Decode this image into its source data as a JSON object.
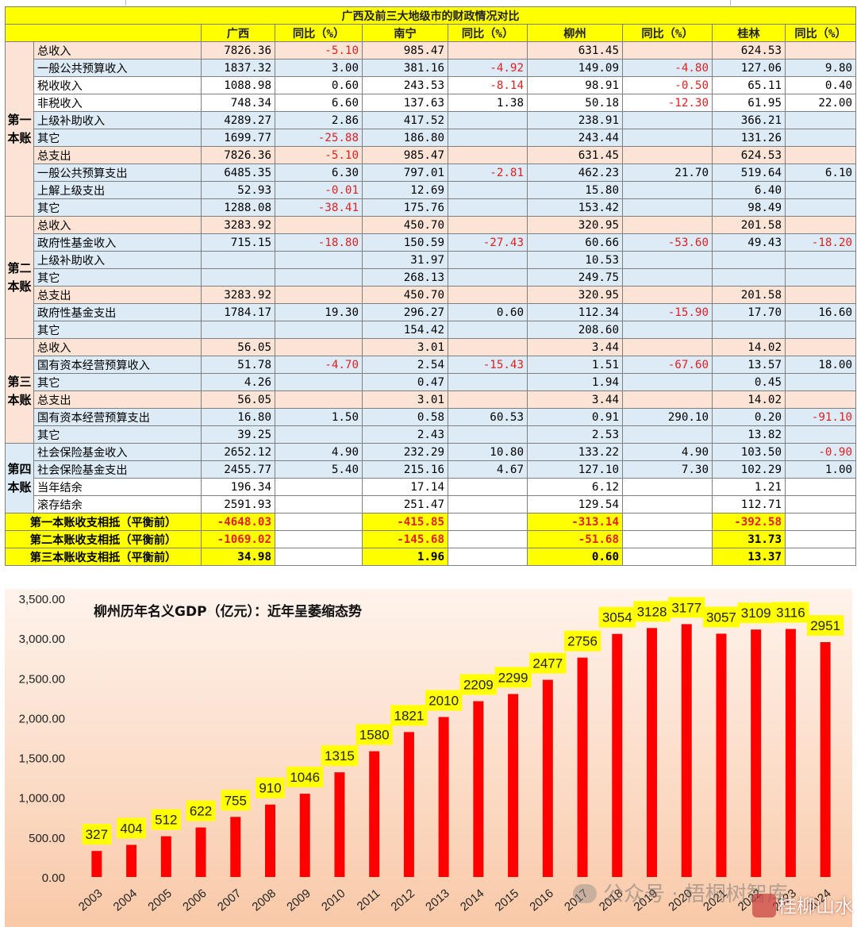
{
  "table": {
    "title": "广西及前三大地级市的财政情况对比",
    "headers": [
      "广西",
      "同比（%）",
      "南宁",
      "同比（%）",
      "柳州",
      "同比（%）",
      "桂林",
      "同比（%）"
    ],
    "sections": [
      {
        "name": "第一本账",
        "rows": [
          {
            "label": "总收入",
            "style": "pk",
            "vals": [
              "7826.36",
              "-5.10",
              "985.47",
              "",
              "631.45",
              "",
              "624.53",
              ""
            ]
          },
          {
            "label": "一般公共预算收入",
            "style": "bl",
            "vals": [
              "1837.32",
              "3.00",
              "381.16",
              "-4.92",
              "149.09",
              "-4.80",
              "127.06",
              "9.80"
            ]
          },
          {
            "label": "税收收入",
            "style": "wh",
            "vals": [
              "1088.98",
              "0.60",
              "243.53",
              "-8.14",
              "98.91",
              "-0.50",
              "65.11",
              "0.40"
            ]
          },
          {
            "label": "非税收入",
            "style": "wh",
            "vals": [
              "748.34",
              "6.60",
              "137.63",
              "1.38",
              "50.18",
              "-12.30",
              "61.95",
              "22.00"
            ]
          },
          {
            "label": "上级补助收入",
            "style": "bl",
            "vals": [
              "4289.27",
              "2.86",
              "417.52",
              "",
              "238.91",
              "",
              "366.21",
              ""
            ]
          },
          {
            "label": "其它",
            "style": "bl",
            "vals": [
              "1699.77",
              "-25.88",
              "186.80",
              "",
              "243.44",
              "",
              "131.26",
              ""
            ]
          },
          {
            "label": "总支出",
            "style": "pk",
            "vals": [
              "7826.36",
              "-5.10",
              "985.47",
              "",
              "631.45",
              "",
              "624.53",
              ""
            ]
          },
          {
            "label": "一般公共预算支出",
            "style": "bl",
            "vals": [
              "6485.35",
              "6.30",
              "797.01",
              "-2.81",
              "462.23",
              "21.70",
              "519.64",
              "6.10"
            ]
          },
          {
            "label": "上解上级支出",
            "style": "bl",
            "vals": [
              "52.93",
              "-0.01",
              "12.69",
              "",
              "15.80",
              "",
              "6.40",
              ""
            ]
          },
          {
            "label": "其它",
            "style": "bl",
            "vals": [
              "1288.08",
              "-38.41",
              "175.76",
              "",
              "153.42",
              "",
              "98.49",
              ""
            ]
          }
        ]
      },
      {
        "name": "第二本账",
        "rows": [
          {
            "label": "总收入",
            "style": "pk",
            "vals": [
              "3283.92",
              "",
              "450.70",
              "",
              "320.95",
              "",
              "201.58",
              ""
            ]
          },
          {
            "label": "政府性基金收入",
            "style": "bl",
            "vals": [
              "715.15",
              "-18.80",
              "150.59",
              "-27.43",
              "60.66",
              "-53.60",
              "49.43",
              "-18.20"
            ]
          },
          {
            "label": "上级补助收入",
            "style": "bl",
            "vals": [
              "",
              "",
              "31.97",
              "",
              "10.53",
              "",
              "",
              ""
            ]
          },
          {
            "label": "其它",
            "style": "bl",
            "vals": [
              "",
              "",
              "268.13",
              "",
              "249.75",
              "",
              "",
              ""
            ]
          },
          {
            "label": "总支出",
            "style": "pk",
            "vals": [
              "3283.92",
              "",
              "450.70",
              "",
              "320.95",
              "",
              "201.58",
              ""
            ]
          },
          {
            "label": "政府性基金支出",
            "style": "bl",
            "vals": [
              "1784.17",
              "19.30",
              "296.27",
              "0.60",
              "112.34",
              "-15.90",
              "17.70",
              "16.60"
            ]
          },
          {
            "label": "其它",
            "style": "bl",
            "vals": [
              "",
              "",
              "154.42",
              "",
              "208.60",
              "",
              "",
              ""
            ]
          }
        ]
      },
      {
        "name": "第三本账",
        "rows": [
          {
            "label": "总收入",
            "style": "pk",
            "vals": [
              "56.05",
              "",
              "3.01",
              "",
              "3.44",
              "",
              "14.02",
              ""
            ]
          },
          {
            "label": "国有资本经营预算收入",
            "style": "bl",
            "vals": [
              "51.78",
              "-4.70",
              "2.54",
              "-15.43",
              "1.51",
              "-67.60",
              "13.57",
              "18.00"
            ]
          },
          {
            "label": "其它",
            "style": "bl",
            "vals": [
              "4.26",
              "",
              "0.47",
              "",
              "1.94",
              "",
              "0.45",
              ""
            ]
          },
          {
            "label": "总支出",
            "style": "pk",
            "vals": [
              "56.05",
              "",
              "3.01",
              "",
              "3.44",
              "",
              "14.02",
              ""
            ]
          },
          {
            "label": "国有资本经营预算支出",
            "style": "bl",
            "vals": [
              "16.80",
              "1.50",
              "0.58",
              "60.53",
              "0.91",
              "290.10",
              "0.20",
              "-91.10"
            ]
          },
          {
            "label": "其它",
            "style": "bl",
            "vals": [
              "39.25",
              "",
              "2.43",
              "",
              "2.53",
              "",
              "13.82",
              ""
            ]
          }
        ]
      },
      {
        "name": "第四本账",
        "rows": [
          {
            "label": "社会保险基金收入",
            "style": "bl",
            "vals": [
              "2652.12",
              "4.90",
              "232.29",
              "10.80",
              "133.22",
              "4.90",
              "103.50",
              "-0.90"
            ]
          },
          {
            "label": "社会保险基金支出",
            "style": "bl",
            "vals": [
              "2455.77",
              "5.40",
              "215.16",
              "4.67",
              "127.10",
              "7.30",
              "102.29",
              "1.00"
            ]
          },
          {
            "label": "当年结余",
            "style": "wh",
            "vals": [
              "196.34",
              "",
              "17.14",
              "",
              "6.12",
              "",
              "1.21",
              ""
            ]
          },
          {
            "label": "滚存结余",
            "style": "wh",
            "vals": [
              "2591.93",
              "",
              "251.47",
              "",
              "129.54",
              "",
              "112.71",
              ""
            ]
          }
        ]
      }
    ],
    "balances": [
      {
        "label": "第一本账收支相抵（平衡前）",
        "vals": [
          "-4648.03",
          "-415.85",
          "-313.14",
          "-392.58"
        ]
      },
      {
        "label": "第二本账收支相抵（平衡前）",
        "vals": [
          "-1069.02",
          "-145.68",
          "-51.68",
          "31.73"
        ]
      },
      {
        "label": "第三本账收支相抵（平衡前）",
        "vals": [
          "34.98",
          "1.96",
          "0.60",
          "13.37"
        ]
      }
    ]
  },
  "chart_data": {
    "type": "bar",
    "title": "柳州历年名义GDP（亿元）：近年呈萎缩态势",
    "categories": [
      "2003",
      "2004",
      "2005",
      "2006",
      "2007",
      "2008",
      "2009",
      "2010",
      "2011",
      "2012",
      "2013",
      "2014",
      "2015",
      "2016",
      "2017",
      "2018",
      "2019",
      "2020",
      "2021",
      "2022",
      "2023",
      "2024"
    ],
    "values": [
      327,
      404,
      512,
      622,
      755,
      910,
      1046,
      1315,
      1580,
      1821,
      2010,
      2209,
      2299,
      2477,
      2756,
      3054,
      3128,
      3177,
      3057,
      3109,
      3116,
      2951
    ],
    "ylim": [
      0,
      3500
    ],
    "yticks": [
      "0.00",
      "500.00",
      "1,000.00",
      "1,500.00",
      "2,000.00",
      "2,500.00",
      "3,000.00",
      "3,500.00"
    ],
    "bar_color": "#ff0000",
    "label_bg": "#ffff00",
    "background_gradient": [
      "#fef3ec",
      "#f9c9a8"
    ],
    "xlabel": "",
    "ylabel": ""
  },
  "watermark": {
    "text": "公众号 · 梧桐树智库",
    "logo_text": "桂柳山水"
  }
}
